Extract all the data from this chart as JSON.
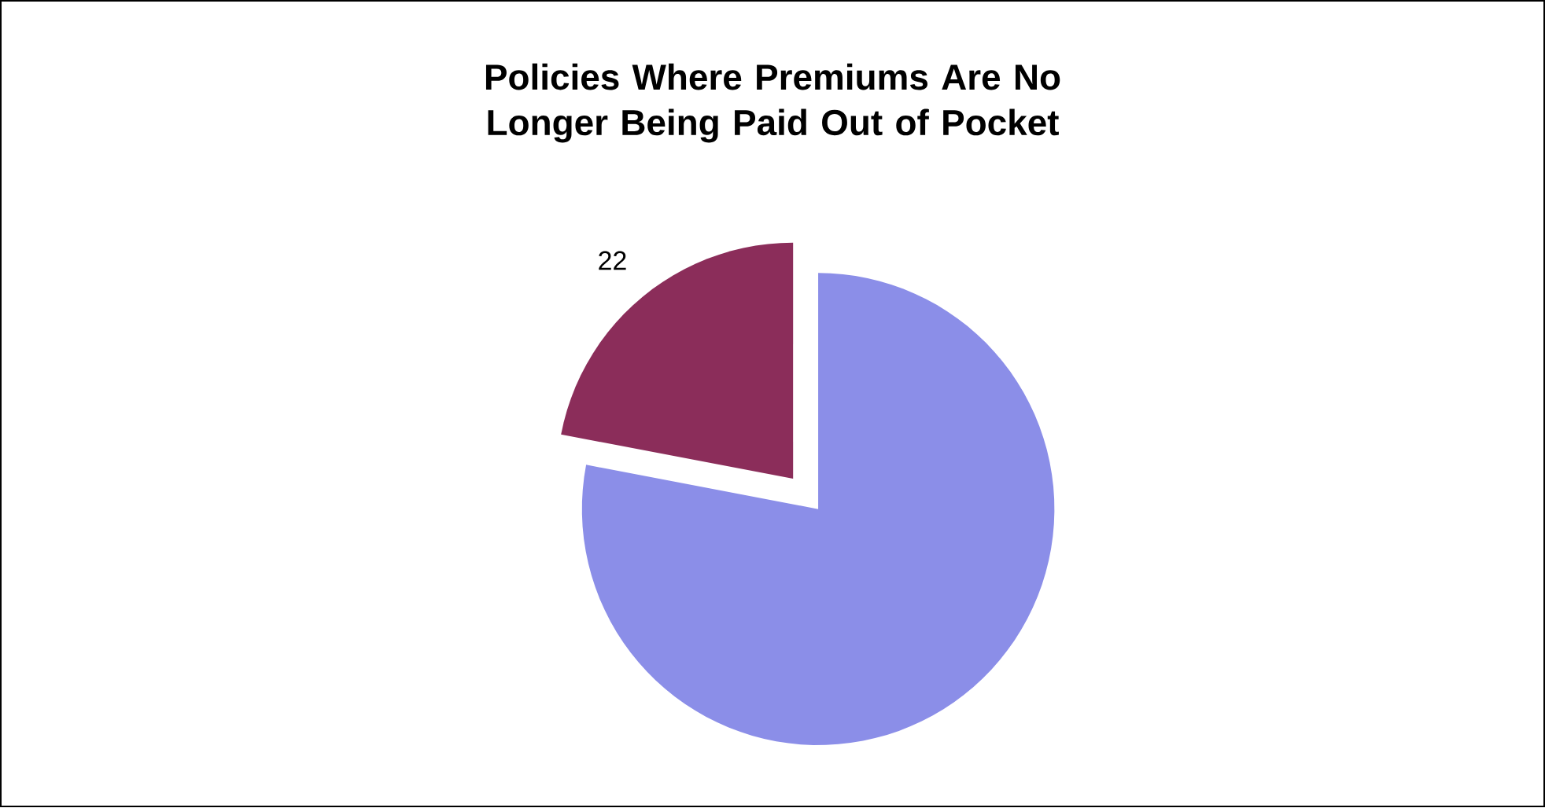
{
  "chart_data": {
    "type": "pie",
    "title": "Policies Where Premiums Are No Longer Being Paid Out of Pocket",
    "categories": [
      null,
      null
    ],
    "values": [
      78,
      22
    ],
    "colors": [
      "#8b8ee8",
      "#8b2d5a"
    ],
    "value_labels": [
      null,
      "22"
    ]
  }
}
